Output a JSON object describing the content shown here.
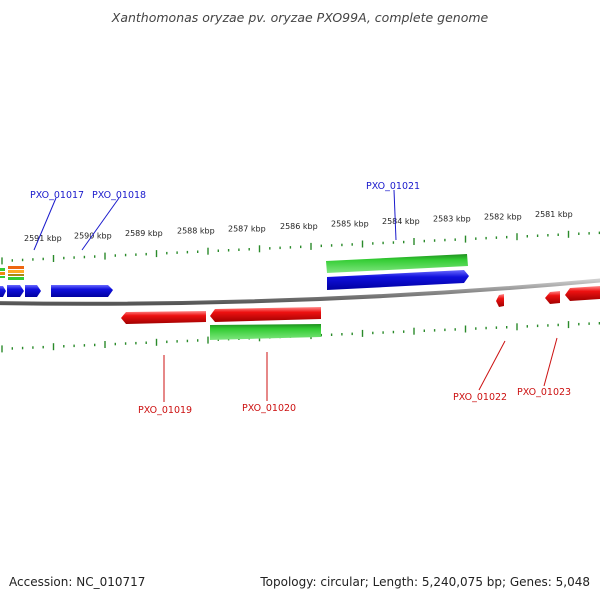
{
  "title": "Xanthomonas oryzae pv. oryzae PXO99A, complete genome",
  "footer": {
    "accession": "Accession: NC_010717",
    "summary": "Topology: circular; Length: 5,240,075 bp; Genes: 5,048"
  },
  "colors": {
    "forward_gene": "#1010dd",
    "forward_label": "#1a1acc",
    "reverse_gene": "#ee1111",
    "reverse_label": "#cc1111",
    "cds_feature": "#33cc33",
    "tick": "#2a8a2a",
    "backbone": "#8a8a8a"
  },
  "scale_labels": [
    "2591 kbp",
    "2590 kbp",
    "2589 kbp",
    "2588 kbp",
    "2587 kbp",
    "2586 kbp",
    "2585 kbp",
    "2584 kbp",
    "2583 kbp",
    "2582 kbp",
    "2581 kbp"
  ],
  "genes": {
    "forward": [
      "PXO_01017",
      "PXO_01018",
      "PXO_01021"
    ],
    "reverse": [
      "PXO_01019",
      "PXO_01020",
      "PXO_01022",
      "PXO_01023"
    ]
  }
}
